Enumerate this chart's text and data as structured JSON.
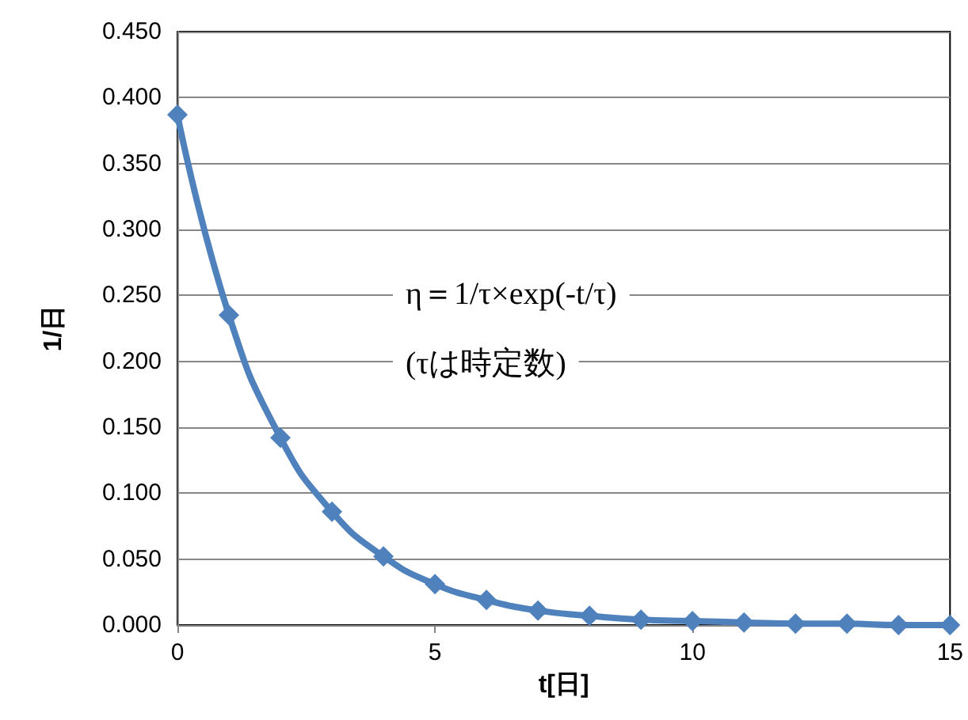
{
  "chart_data": {
    "type": "line",
    "xlabel": "t[日]",
    "ylabel": "1/日",
    "x": [
      0,
      1,
      2,
      3,
      4,
      5,
      6,
      7,
      8,
      9,
      10,
      11,
      12,
      13,
      14,
      15
    ],
    "series": [
      {
        "color": "#4f81bd",
        "values": [
          0.387,
          0.235,
          0.142,
          0.086,
          0.052,
          0.031,
          0.019,
          0.011,
          0.007,
          0.004,
          0.003,
          0.002,
          0.001,
          0.001,
          0.0,
          0.0
        ]
      }
    ],
    "xlim": [
      0,
      15
    ],
    "xticks": [
      0,
      5,
      10,
      15
    ],
    "ylim": [
      0,
      0.45
    ],
    "yticks": [
      {
        "value": 0,
        "label": "0.000"
      },
      {
        "value": 0.05,
        "label": "0.050"
      },
      {
        "value": 0.1,
        "label": "0.100"
      },
      {
        "value": 0.15,
        "label": "0.150"
      },
      {
        "value": 0.2,
        "label": "0.200"
      },
      {
        "value": 0.25,
        "label": "0.250"
      },
      {
        "value": 0.3,
        "label": "0.300"
      },
      {
        "value": 0.35,
        "label": "0.350"
      },
      {
        "value": 0.4,
        "label": "0.400"
      },
      {
        "value": 0.45,
        "label": "0.450"
      }
    ],
    "grid": "y",
    "marker": "diamond",
    "line_style": "solid",
    "annotations": [
      "η＝1/τ×exp(-t/τ)",
      "(τは時定数)"
    ]
  }
}
